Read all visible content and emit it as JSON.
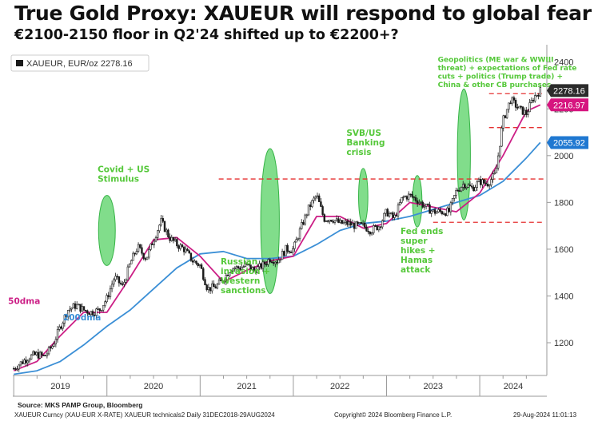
{
  "header": {
    "title": "True Gold Proxy: XAUEUR will respond to global fear",
    "subtitle": "€2100-2150 floor in Q2'24 shifted up to €2200+?"
  },
  "footer": {
    "source": "Source: MKS PAMP Group, Bloomberg",
    "left": "XAUEUR Curncy (XAU-EUR X-RATE) XAUEUR technicals2  Daily 31DEC2018-29AUG2024",
    "middle": "Copyright© 2024 Bloomberg Finance L.P.",
    "right": "29-Aug-2024 11:01:13"
  },
  "colors": {
    "price": "#1a1a1a",
    "ma50": "#cc1f86",
    "ma200": "#3b8fd6",
    "highlight_fill": "#4ccf5a",
    "annotation_text": "#55c83a",
    "level_line": "#e53030",
    "tag_price_bg": "#2b2b2b",
    "tag_ma50_bg": "#d6157f",
    "tag_ma200_bg": "#1f78d1"
  },
  "chart_data": {
    "type": "line",
    "x_axis": {
      "categories": [
        "2019",
        "2020",
        "2021",
        "2022",
        "2023",
        "2024"
      ]
    },
    "y_axis": {
      "ticks": [
        1200,
        1400,
        1600,
        1800,
        2000,
        2200,
        2400
      ],
      "ylim": [
        1060,
        2440
      ],
      "side": "right"
    },
    "grid": false,
    "legend": {
      "position": "top-left",
      "entries": [
        "XAUEUR, EUR/oz 2278.16"
      ]
    },
    "series": [
      {
        "name": "XAUEUR",
        "style": "candles",
        "x": [
          2019.0,
          2019.08,
          2019.17,
          2019.25,
          2019.33,
          2019.42,
          2019.5,
          2019.58,
          2019.67,
          2019.75,
          2019.83,
          2019.92,
          2020.0,
          2020.08,
          2020.17,
          2020.25,
          2020.33,
          2020.42,
          2020.5,
          2020.58,
          2020.67,
          2020.75,
          2020.83,
          2020.92,
          2021.0,
          2021.08,
          2021.17,
          2021.25,
          2021.33,
          2021.42,
          2021.5,
          2021.58,
          2021.67,
          2021.75,
          2021.83,
          2021.92,
          2022.0,
          2022.08,
          2022.17,
          2022.25,
          2022.33,
          2022.42,
          2022.5,
          2022.58,
          2022.67,
          2022.75,
          2022.83,
          2022.92,
          2023.0,
          2023.08,
          2023.17,
          2023.25,
          2023.33,
          2023.42,
          2023.5,
          2023.58,
          2023.67,
          2023.75,
          2023.83,
          2023.92,
          2024.0,
          2024.08,
          2024.17,
          2024.25,
          2024.33,
          2024.42,
          2024.5,
          2024.58,
          2024.65
        ],
        "values": [
          1090,
          1115,
          1140,
          1150,
          1140,
          1190,
          1270,
          1340,
          1360,
          1340,
          1330,
          1340,
          1390,
          1480,
          1440,
          1540,
          1610,
          1560,
          1640,
          1720,
          1650,
          1620,
          1600,
          1550,
          1530,
          1430,
          1440,
          1470,
          1520,
          1520,
          1530,
          1510,
          1530,
          1560,
          1550,
          1600,
          1600,
          1690,
          1780,
          1830,
          1730,
          1730,
          1710,
          1710,
          1700,
          1700,
          1680,
          1700,
          1760,
          1730,
          1820,
          1830,
          1810,
          1780,
          1760,
          1760,
          1760,
          1850,
          1880,
          1860,
          1890,
          1880,
          1920,
          2150,
          2240,
          2200,
          2180,
          2250,
          2278.16
        ]
      },
      {
        "name": "50dma",
        "x": [
          2019.0,
          2019.25,
          2019.5,
          2019.75,
          2020.0,
          2020.25,
          2020.5,
          2020.75,
          2021.0,
          2021.25,
          2021.5,
          2021.75,
          2022.0,
          2022.25,
          2022.5,
          2022.75,
          2023.0,
          2023.25,
          2023.5,
          2023.75,
          2024.0,
          2024.25,
          2024.5,
          2024.65
        ],
        "values": [
          1080,
          1120,
          1230,
          1330,
          1330,
          1480,
          1640,
          1650,
          1570,
          1460,
          1510,
          1550,
          1570,
          1740,
          1740,
          1690,
          1710,
          1800,
          1780,
          1760,
          1840,
          2000,
          2190,
          2216.97
        ]
      },
      {
        "name": "200dma",
        "x": [
          2019.0,
          2019.25,
          2019.5,
          2019.75,
          2020.0,
          2020.25,
          2020.5,
          2020.75,
          2021.0,
          2021.25,
          2021.5,
          2021.75,
          2022.0,
          2022.25,
          2022.5,
          2022.75,
          2023.0,
          2023.25,
          2023.5,
          2023.75,
          2024.0,
          2024.25,
          2024.5,
          2024.65
        ],
        "values": [
          1065,
          1080,
          1120,
          1190,
          1270,
          1340,
          1430,
          1520,
          1580,
          1590,
          1560,
          1560,
          1570,
          1620,
          1680,
          1710,
          1720,
          1740,
          1770,
          1800,
          1830,
          1890,
          1990,
          2055.92
        ]
      }
    ],
    "value_tags": [
      {
        "label": "2278.16",
        "value": 2278.16,
        "style": "price"
      },
      {
        "label": "2216.97",
        "value": 2216.97,
        "style": "ma50"
      },
      {
        "label": "2055.92",
        "value": 2055.92,
        "style": "ma200"
      }
    ],
    "levels": [
      {
        "value": 1900,
        "x_from": 2021.2,
        "x_to": 2024.7
      },
      {
        "value": 1715,
        "x_from": 2023.5,
        "x_to": 2024.7
      },
      {
        "value": 2265,
        "x_from": 2024.1,
        "x_to": 2024.7
      },
      {
        "value": 2120,
        "x_from": 2024.1,
        "x_to": 2024.7
      }
    ],
    "highlights": [
      {
        "cx": 2020.0,
        "cy": 1680,
        "rx": 0.09,
        "ry": 150
      },
      {
        "cx": 2021.75,
        "cy": 1720,
        "rx": 0.1,
        "ry": 310
      },
      {
        "cx": 2022.75,
        "cy": 1825,
        "rx": 0.05,
        "ry": 120
      },
      {
        "cx": 2023.33,
        "cy": 1805,
        "rx": 0.05,
        "ry": 110
      },
      {
        "cx": 2023.83,
        "cy": 2005,
        "rx": 0.07,
        "ry": 280
      }
    ],
    "annotations": [
      {
        "lines": [
          "Covid + US",
          "Stimulus"
        ],
        "x": 2019.9,
        "y": 1930,
        "color": "green"
      },
      {
        "lines": [
          "Russian",
          "invasion +",
          "Western",
          "sanctions"
        ],
        "x": 2021.22,
        "y": 1535,
        "color": "green"
      },
      {
        "lines": [
          "SVB/US",
          "Banking",
          "crisis"
        ],
        "x": 2022.57,
        "y": 2085,
        "color": "green"
      },
      {
        "lines": [
          "Fed ends",
          "super",
          "hikes +",
          "Hamas",
          "attack"
        ],
        "x": 2023.15,
        "y": 1665,
        "color": "green"
      },
      {
        "lines": [
          "Geopolitics (ME war & WWIII",
          "threat) + expectations of Fed rate",
          "cuts + politics (Trump trade) +",
          "China & other CB purchases"
        ],
        "x": 2023.55,
        "y": 2400,
        "color": "green"
      },
      {
        "lines": [
          "50dma"
        ],
        "x": 2018.94,
        "y": 1365,
        "color": "magenta"
      },
      {
        "lines": [
          "200dma"
        ],
        "x": 2019.53,
        "y": 1295,
        "color": "blue"
      }
    ]
  }
}
